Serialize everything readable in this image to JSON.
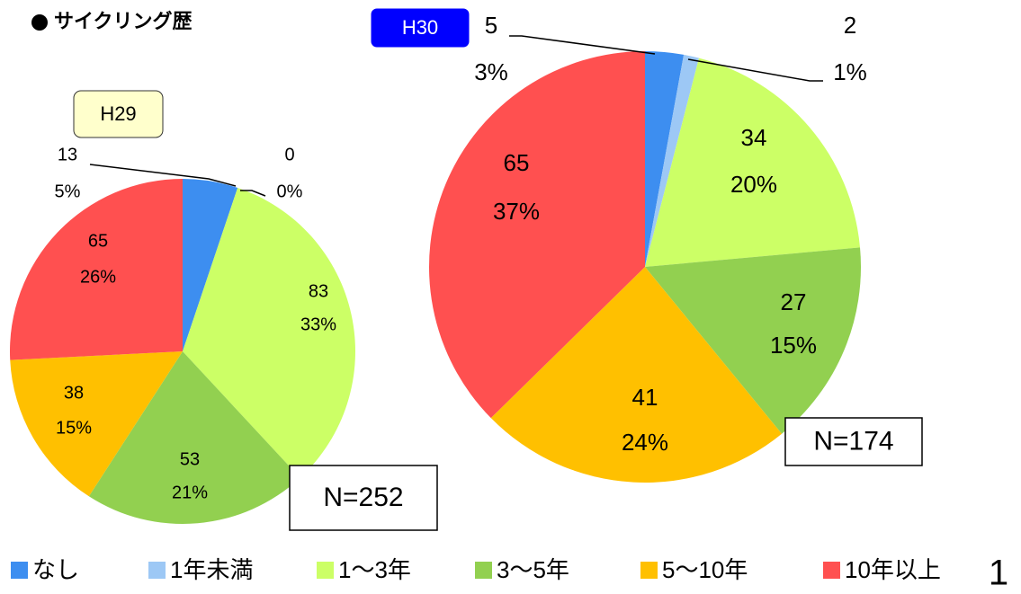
{
  "title": "サイクリング歴",
  "legend": {
    "categories": [
      "なし",
      "1年未満",
      "1〜3年",
      "3〜5年",
      "5〜10年",
      "10年以上"
    ],
    "colors": [
      "#3d8ef0",
      "#9dc8f5",
      "#ccff66",
      "#92d050",
      "#ffc000",
      "#ff5050"
    ]
  },
  "page_number": "1",
  "chart_data": [
    {
      "type": "pie",
      "badge": "H29",
      "n_label": "N=252",
      "values": [
        13,
        0,
        83,
        53,
        38,
        65
      ],
      "percent_labels": [
        "5%",
        "0%",
        "33%",
        "21%",
        "15%",
        "26%"
      ]
    },
    {
      "type": "pie",
      "badge": "H30",
      "n_label": "N=174",
      "values": [
        5,
        2,
        34,
        27,
        41,
        65
      ],
      "percent_labels": [
        "3%",
        "1%",
        "20%",
        "15%",
        "24%",
        "37%"
      ]
    }
  ]
}
